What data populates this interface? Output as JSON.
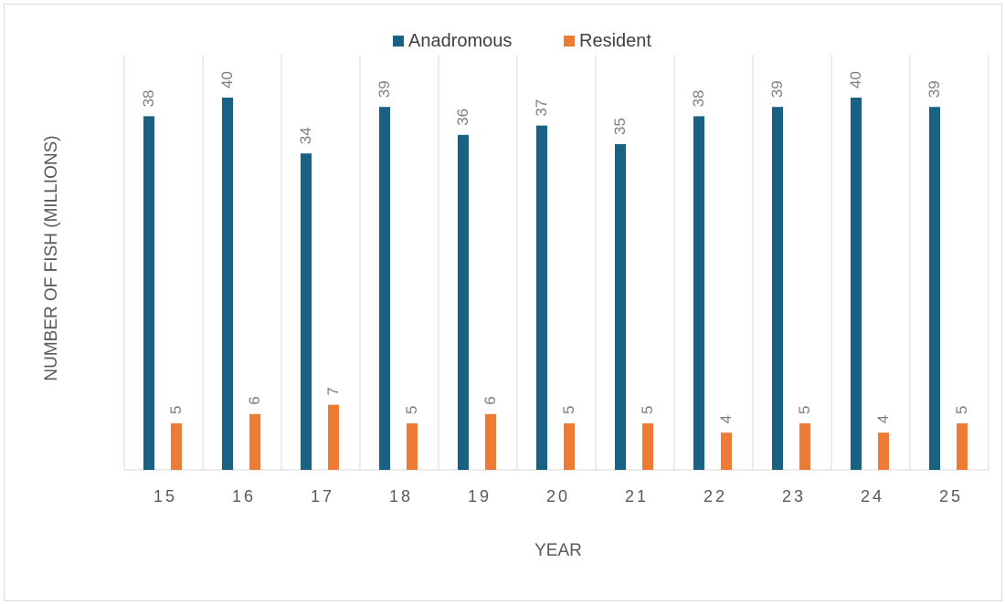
{
  "chart_data": {
    "type": "bar",
    "title": "",
    "xlabel": "YEAR",
    "ylabel": "NUMBER OF FISH (MILLIONS)",
    "categories": [
      "15",
      "16",
      "17",
      "18",
      "19",
      "20",
      "21",
      "22",
      "23",
      "24",
      "25"
    ],
    "series": [
      {
        "name": "Anadromous",
        "color": "#1a6284",
        "values": [
          38,
          40,
          34,
          39,
          36,
          37,
          35,
          38,
          39,
          40,
          39
        ]
      },
      {
        "name": "Resident",
        "color": "#ed7a35",
        "values": [
          5,
          6,
          7,
          5,
          6,
          5,
          5,
          4,
          5,
          4,
          5
        ]
      }
    ],
    "ylim": [
      0,
      42
    ],
    "grid": "vertical category separators",
    "legend": "top",
    "data_labels": "rotated, above bars"
  }
}
